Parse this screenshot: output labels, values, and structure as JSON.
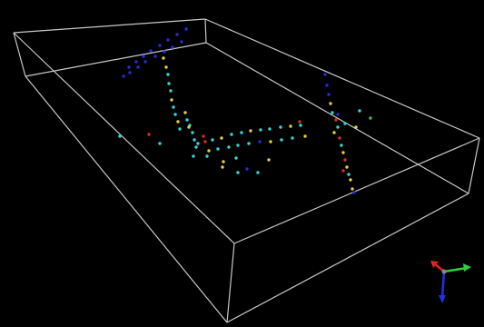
{
  "viewport": {
    "background": "#000000",
    "box_color": "#c8c8c8",
    "point_palette": {
      "blue": "#2a2ad8",
      "cyan": "#35d6d6",
      "yellow": "#e0d040",
      "red": "#d83020",
      "green": "#40c060"
    }
  },
  "points": [
    {
      "c": "blue"
    },
    {
      "c": "blue"
    },
    {
      "c": "blue"
    },
    {
      "c": "blue"
    },
    {
      "c": "blue"
    },
    {
      "c": "blue"
    },
    {
      "c": "blue"
    },
    {
      "c": "blue"
    },
    {
      "c": "blue"
    },
    {
      "c": "blue"
    },
    {
      "c": "blue"
    },
    {
      "c": "blue"
    },
    {
      "c": "blue"
    },
    {
      "c": "blue"
    },
    {
      "c": "blue"
    },
    {
      "c": "blue"
    },
    {
      "c": "yellow"
    },
    {
      "c": "yellow"
    },
    {
      "c": "cyan"
    },
    {
      "c": "cyan"
    },
    {
      "c": "cyan"
    },
    {
      "c": "yellow"
    },
    {
      "c": "cyan"
    },
    {
      "c": "cyan"
    },
    {
      "c": "yellow"
    },
    {
      "c": "cyan"
    },
    {
      "c": "yellow"
    },
    {
      "c": "cyan"
    },
    {
      "c": "cyan"
    },
    {
      "c": "cyan"
    },
    {
      "c": "cyan"
    },
    {
      "c": "cyan"
    },
    {
      "c": "red"
    },
    {
      "c": "cyan"
    },
    {
      "c": "yellow"
    },
    {
      "c": "cyan"
    },
    {
      "c": "cyan"
    },
    {
      "c": "yellow"
    },
    {
      "c": "cyan"
    },
    {
      "c": "cyan"
    },
    {
      "c": "cyan"
    },
    {
      "c": "yellow"
    },
    {
      "c": "cyan"
    },
    {
      "c": "red"
    },
    {
      "c": "yellow"
    },
    {
      "c": "cyan"
    },
    {
      "c": "cyan"
    },
    {
      "c": "cyan"
    },
    {
      "c": "cyan"
    },
    {
      "c": "blue"
    },
    {
      "c": "yellow"
    },
    {
      "c": "cyan"
    },
    {
      "c": "cyan"
    },
    {
      "c": "yellow"
    },
    {
      "c": "red"
    },
    {
      "c": "cyan"
    },
    {
      "c": "yellow"
    },
    {
      "c": "cyan"
    },
    {
      "c": "cyan"
    },
    {
      "c": "red"
    },
    {
      "c": "yellow"
    },
    {
      "c": "cyan"
    },
    {
      "c": "blue"
    },
    {
      "c": "cyan"
    },
    {
      "c": "yellow"
    },
    {
      "c": "blue"
    },
    {
      "c": "blue"
    },
    {
      "c": "blue"
    },
    {
      "c": "yellow"
    },
    {
      "c": "cyan"
    },
    {
      "c": "red"
    },
    {
      "c": "cyan"
    },
    {
      "c": "yellow"
    },
    {
      "c": "red"
    },
    {
      "c": "cyan"
    },
    {
      "c": "yellow"
    },
    {
      "c": "blue"
    },
    {
      "c": "red"
    },
    {
      "c": "yellow"
    },
    {
      "c": "cyan"
    },
    {
      "c": "yellow"
    },
    {
      "c": "red"
    },
    {
      "c": "yellow"
    },
    {
      "c": "blue"
    },
    {
      "c": "cyan"
    },
    {
      "c": "yellow"
    },
    {
      "c": "green"
    },
    {
      "c": "cyan"
    },
    {
      "c": "cyan"
    },
    {
      "c": "cyan"
    },
    {
      "c": "yellow"
    },
    {
      "c": "cyan"
    }
  ],
  "axis_gizmo": {
    "x_color": "#2ecc40",
    "y_color": "#e02020",
    "z_color": "#2030e0"
  }
}
